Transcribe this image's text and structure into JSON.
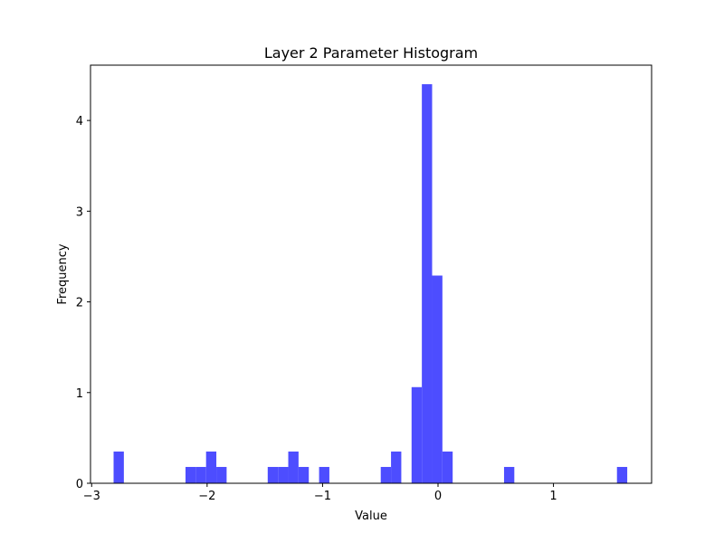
{
  "chart_data": {
    "type": "bar",
    "subtype": "histogram",
    "title": "Layer 2 Parameter Histogram",
    "xlabel": "Value",
    "ylabel": "Frequency",
    "xlim": [
      -3.01,
      1.85
    ],
    "ylim": [
      0,
      4.61
    ],
    "x_ticks": [
      {
        "value": -3,
        "label": "−3"
      },
      {
        "value": -2,
        "label": "−2"
      },
      {
        "value": -1,
        "label": "−1"
      },
      {
        "value": 0,
        "label": "0"
      },
      {
        "value": 1,
        "label": "1"
      }
    ],
    "y_ticks": [
      {
        "value": 0,
        "label": "0"
      },
      {
        "value": 1,
        "label": "1"
      },
      {
        "value": 2,
        "label": "2"
      },
      {
        "value": 3,
        "label": "3"
      },
      {
        "value": 4,
        "label": "4"
      }
    ],
    "bin_width": 0.089,
    "bins": [
      {
        "x0": -2.81,
        "x1": -2.721,
        "value": 0.35
      },
      {
        "x0": -2.187,
        "x1": -2.098,
        "value": 0.18
      },
      {
        "x0": -2.098,
        "x1": -2.009,
        "value": 0.18
      },
      {
        "x0": -2.009,
        "x1": -1.92,
        "value": 0.35
      },
      {
        "x0": -1.92,
        "x1": -1.831,
        "value": 0.18
      },
      {
        "x0": -1.475,
        "x1": -1.386,
        "value": 0.18
      },
      {
        "x0": -1.386,
        "x1": -1.297,
        "value": 0.18
      },
      {
        "x0": -1.297,
        "x1": -1.208,
        "value": 0.35
      },
      {
        "x0": -1.208,
        "x1": -1.119,
        "value": 0.18
      },
      {
        "x0": -1.03,
        "x1": -0.941,
        "value": 0.18
      },
      {
        "x0": -0.496,
        "x1": -0.407,
        "value": 0.18
      },
      {
        "x0": -0.407,
        "x1": -0.318,
        "value": 0.35
      },
      {
        "x0": -0.229,
        "x1": -0.14,
        "value": 1.06
      },
      {
        "x0": -0.14,
        "x1": -0.051,
        "value": 4.4
      },
      {
        "x0": -0.051,
        "x1": 0.038,
        "value": 2.29
      },
      {
        "x0": 0.038,
        "x1": 0.127,
        "value": 0.35
      },
      {
        "x0": 0.572,
        "x1": 0.661,
        "value": 0.18
      },
      {
        "x0": 1.55,
        "x1": 1.639,
        "value": 0.18
      }
    ],
    "bar_color": "#4d4dff",
    "grid": false,
    "legend": "none"
  }
}
